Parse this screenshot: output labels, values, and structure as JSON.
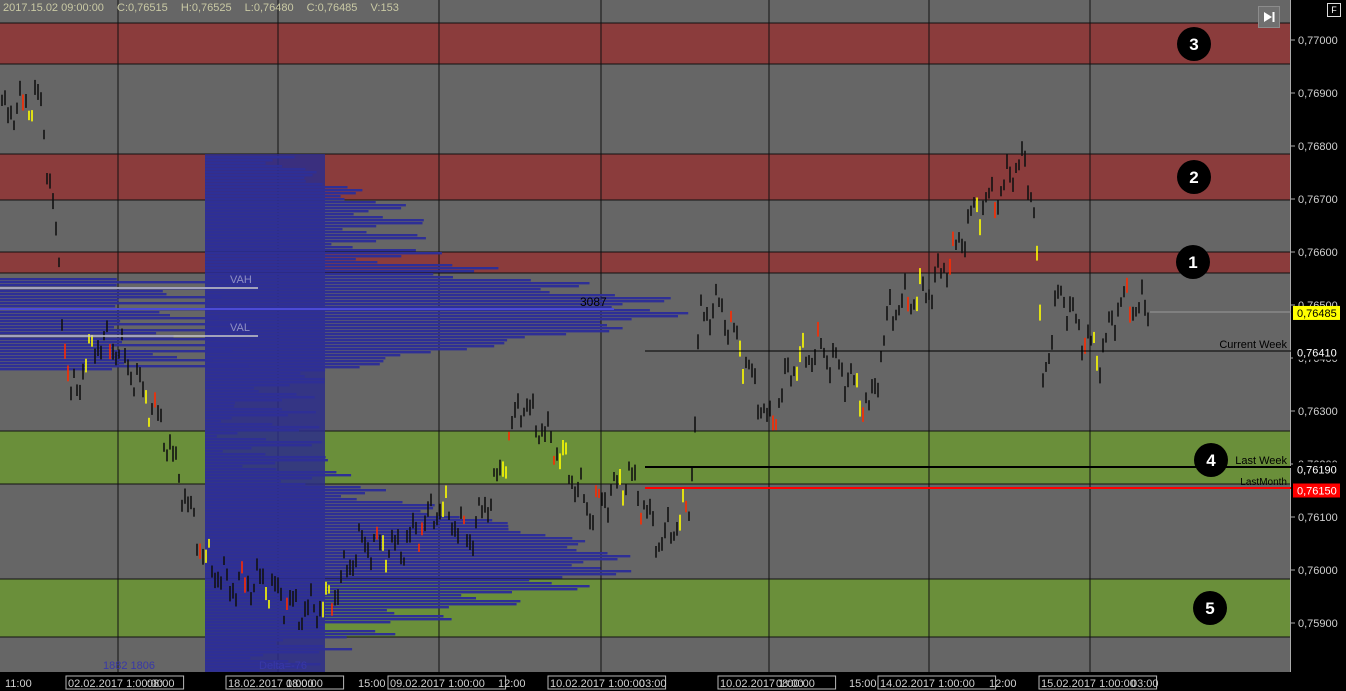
{
  "header": {
    "datetime": "2017.15.02 09:00:00",
    "open": "C:0,76515",
    "high": "H:0,76525",
    "low": "L:0,76480",
    "close": "C:0,76485",
    "volume": "V:153"
  },
  "toolbar": {
    "fullscreen_label": "F"
  },
  "price_axis": {
    "ticks": [
      "0,77000",
      "0,76900",
      "0,76800",
      "0,76700",
      "0,76600",
      "0,76500",
      "0,76400",
      "0,76300",
      "0,76200",
      "0,76100",
      "0,76000",
      "0,75900"
    ],
    "badges": [
      {
        "price": "0,76485",
        "bg": "#ffff00",
        "fg": "#000000"
      },
      {
        "price": "0,76410",
        "bg": "#000000",
        "fg": "#ffffff"
      },
      {
        "price": "0,76190",
        "bg": "#000000",
        "fg": "#ffffff"
      },
      {
        "price": "0,76150",
        "bg": "#ff0000",
        "fg": "#ffffff"
      }
    ]
  },
  "time_axis": {
    "labels": [
      "11:00",
      "02.02.2017 1:00:00",
      "08:00",
      "18.02.2017 1:00:00",
      "08:00",
      "15:00",
      "09.02.2017 1:00:00",
      "12:00",
      "10.02.2017 1:00:00",
      "03:00",
      "10.02.2017 1:00:00",
      "08:00",
      "15:00",
      "14.02.2017 1:00:00",
      "12:00",
      "15.02.2017 1:00:00",
      "03:00"
    ]
  },
  "zones": [
    {
      "number": "3",
      "kind": "resistance"
    },
    {
      "number": "2",
      "kind": "resistance"
    },
    {
      "number": "1",
      "kind": "resistance"
    },
    {
      "number": "4",
      "kind": "support"
    },
    {
      "number": "5",
      "kind": "support"
    }
  ],
  "level_labels": {
    "current_week": "Current Week",
    "last_week": "Last Week",
    "last_month": "LastMonth"
  },
  "profile": {
    "vah_label": "VAH",
    "val_label": "VAL",
    "poc_volume": "3087",
    "footer_left": "1882 1806",
    "footer_delta": "Delta=-76"
  },
  "colors": {
    "chart_bg": "#666666",
    "resistance_zone": "#8b3c3c",
    "support_zone": "#6a8f3a",
    "profile_fill": "#2c2d8a",
    "last_month_line": "#ff0000",
    "current_price_badge": "#ffff00"
  }
}
